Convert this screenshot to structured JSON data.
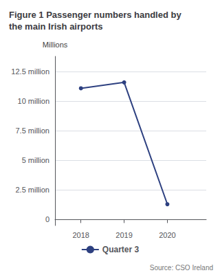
{
  "chart_data": {
    "type": "line",
    "title": "Figure 1 Passenger numbers handled by\nthe main Irish airports",
    "x": [
      2018,
      2019,
      2020
    ],
    "series": [
      {
        "name": "Quarter 3",
        "color": "#2d4080",
        "values": [
          11.1,
          11.6,
          1.3
        ],
        "marker": "circle"
      }
    ],
    "xlim": [
      2017.4,
      2020.9
    ],
    "xticks": [
      2018,
      2019,
      2020
    ],
    "ylim": [
      -0.5,
      13.8
    ],
    "yticks": [
      0,
      {
        "value": 2.5,
        "label": "2.5 million"
      },
      {
        "value": 5.0,
        "label": "5 million"
      },
      {
        "value": 7.5,
        "label": "7.5 million"
      },
      {
        "value": 10.0,
        "label": "10 million"
      },
      {
        "value": 12.5,
        "label": "12.5 million"
      }
    ],
    "ylabel": "Millions",
    "annotations": [
      "Source: CSO Ireland"
    ],
    "grid": true,
    "legend": "bottom"
  }
}
